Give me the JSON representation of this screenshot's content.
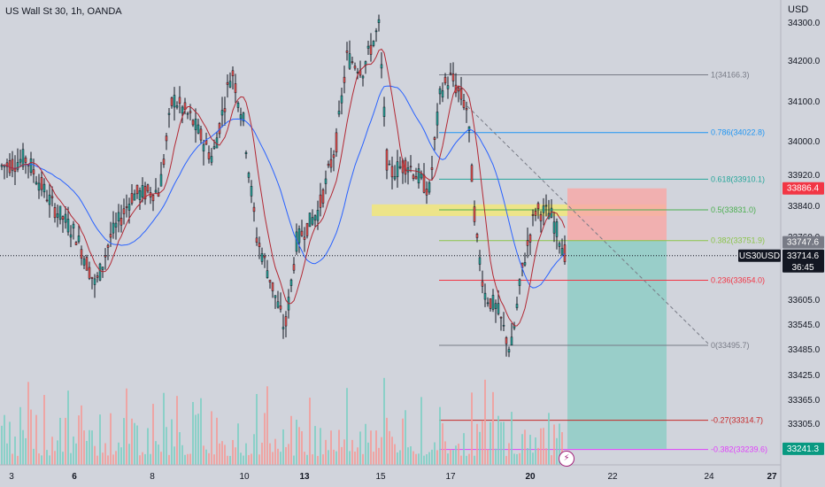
{
  "header": {
    "title": "US Wall St 30, 1h, OANDA",
    "currency": "USD"
  },
  "colors": {
    "up": "#26a69a",
    "down": "#ef5350",
    "ma_fast": "#b22833",
    "ma_slow": "#2962ff",
    "zone": "#f5e96e",
    "stop": "#f7a9a8",
    "target": "#8fcdc5",
    "fib_1": "#787b86",
    "fib_0786": "#2196f3",
    "fib_0618": "#26a69a",
    "fib_05": "#4caf50",
    "fib_0382": "#8bc34a",
    "fib_0236": "#f23645",
    "fib_0": "#787b86",
    "fib_m027": "#c62828",
    "fib_m0382": "#e040fb"
  },
  "chart_data": {
    "type": "candlestick",
    "symbol": "US30USD",
    "y_ticks": [
      "34300.0",
      "34200.0",
      "34100.0",
      "34000.0",
      "33920.0",
      "33840.0",
      "33760.0",
      "33605.0",
      "33545.0",
      "33485.0",
      "33425.0",
      "33365.0",
      "33305.0"
    ],
    "y_tick_values": [
      34300,
      34200,
      34100,
      34000,
      33920,
      33840,
      33760,
      33605,
      33545,
      33485,
      33425,
      33365,
      33305
    ],
    "x_labels": [
      {
        "label": "3",
        "bold": false
      },
      {
        "label": "6",
        "bold": true
      },
      {
        "label": "8",
        "bold": false
      },
      {
        "label": "10",
        "bold": false
      },
      {
        "label": "13",
        "bold": true
      },
      {
        "label": "15",
        "bold": false
      },
      {
        "label": "17",
        "bold": false
      },
      {
        "label": "20",
        "bold": true
      },
      {
        "label": "22",
        "bold": false
      },
      {
        "label": "24",
        "bold": false
      },
      {
        "label": "27",
        "bold": true
      }
    ],
    "fib_levels": [
      {
        "label": "1(34166.3)",
        "value": 34166.3,
        "color_key": "fib_1"
      },
      {
        "label": "0.786(34022.8)",
        "value": 34022.8,
        "color_key": "fib_0786"
      },
      {
        "label": "0.618(33910.1)",
        "value": 33910.1,
        "color_key": "fib_0618"
      },
      {
        "label": "0.5(33831.0)",
        "value": 33831.0,
        "color_key": "fib_05"
      },
      {
        "label": "0.382(33751.9)",
        "value": 33751.9,
        "color_key": "fib_0382"
      },
      {
        "label": "0.236(33654.0)",
        "value": 33654.0,
        "color_key": "fib_0236"
      },
      {
        "label": "0(33495.7)",
        "value": 33495.7,
        "color_key": "fib_0"
      },
      {
        "label": "-0.27(33314.7)",
        "value": 33314.7,
        "color_key": "fib_m027"
      },
      {
        "label": "-0.382(33239.6)",
        "value": 33239.6,
        "color_key": "fib_m0382"
      }
    ],
    "price_badges": [
      {
        "label": "33886.4",
        "value": 33886.4,
        "bg": "#f23645",
        "fg": "#ffffff"
      },
      {
        "label": "33747.6",
        "value": 33747.6,
        "bg": "#787b86",
        "fg": "#ffffff"
      },
      {
        "label": "33714.6",
        "value": 33714.6,
        "bg": "#131722",
        "fg": "#ffffff",
        "sub": "36:45"
      },
      {
        "label": "33241.3",
        "value": 33241.3,
        "bg": "#089981",
        "fg": "#ffffff"
      }
    ],
    "last_price": 33714.6,
    "symbol_badge": "US30USD",
    "position": {
      "entry": 33752,
      "stop": 33886.4,
      "target": 33241.3
    },
    "zone": {
      "top": 33845,
      "bottom": 33815
    },
    "volume_max": 1.0
  }
}
